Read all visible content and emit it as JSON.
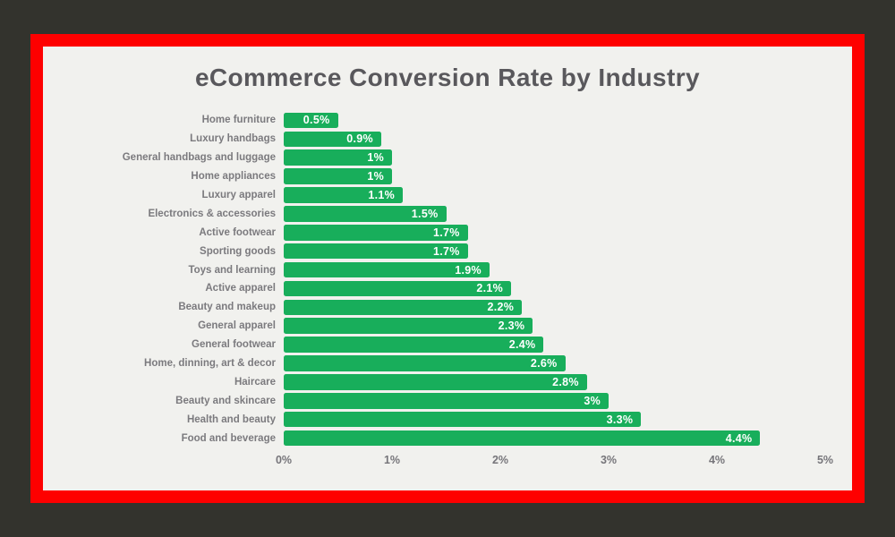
{
  "frame": {
    "outer_background": "#33332d",
    "border_color": "#fe0000",
    "panel_background": "#f1f1ee"
  },
  "chart_data": {
    "type": "bar",
    "orientation": "horizontal",
    "title": "eCommerce Conversion Rate by Industry",
    "categories": [
      "Home furniture",
      "Luxury handbags",
      "General handbags and luggage",
      "Home appliances",
      "Luxury apparel",
      "Electronics & accessories",
      "Active footwear",
      "Sporting goods",
      "Toys and learning",
      "Active apparel",
      "Beauty and makeup",
      "General apparel",
      "General footwear",
      "Home, dinning, art & decor",
      "Haircare",
      "Beauty and skincare",
      "Health and beauty",
      "Food and beverage"
    ],
    "values": [
      0.5,
      0.9,
      1,
      1,
      1.1,
      1.5,
      1.7,
      1.7,
      1.9,
      2.1,
      2.2,
      2.3,
      2.4,
      2.6,
      2.8,
      3,
      3.3,
      4.4
    ],
    "value_labels": [
      "0.5%",
      "0.9%",
      "1%",
      "1%",
      "1.1%",
      "1.5%",
      "1.7%",
      "1.7%",
      "1.9%",
      "2.1%",
      "2.2%",
      "2.3%",
      "2.4%",
      "2.6%",
      "2.8%",
      "3%",
      "3.3%",
      "4.4%"
    ],
    "xlabel": "",
    "ylabel": "",
    "xlim": [
      0,
      5
    ],
    "x_tick_labels": [
      "0%",
      "1%",
      "2%",
      "3%",
      "4%",
      "5%"
    ],
    "grid": false,
    "legend": false,
    "bar_color": "#18ae5b",
    "value_label_color": "#ffffff",
    "category_label_color": "#7b7a7e",
    "tick_label_color": "#76757a",
    "title_color": "#59585c"
  }
}
